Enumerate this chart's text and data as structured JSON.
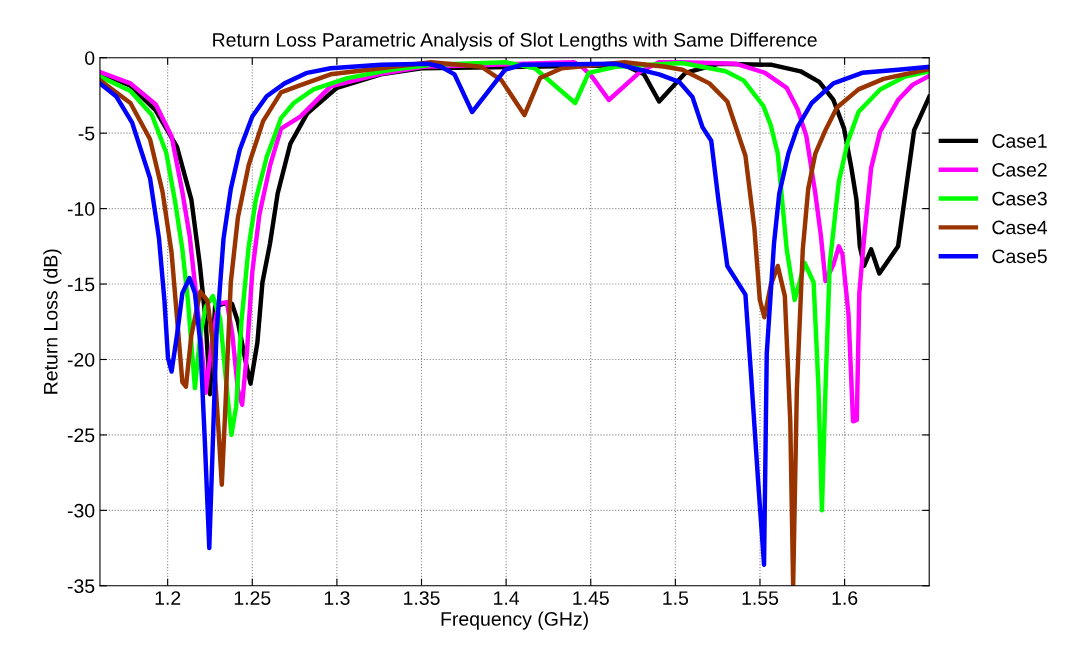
{
  "chart_data": {
    "type": "line",
    "title": "Return Loss Parametric Analysis of Slot Lengths with Same Difference",
    "xlabel": "Frequency (GHz)",
    "ylabel": "Return Loss (dB)",
    "xlim": [
      1.16,
      1.65
    ],
    "ylim": [
      -35,
      0
    ],
    "xticks": [
      1.2,
      1.25,
      1.3,
      1.35,
      1.4,
      1.45,
      1.5,
      1.55,
      1.6
    ],
    "yticks": [
      -35,
      -30,
      -25,
      -20,
      -15,
      -10,
      -5,
      0
    ],
    "grid": true,
    "legend": "right",
    "marker": "none",
    "line_style": "solid",
    "series": [
      {
        "name": "Case1",
        "color": "#000000",
        "x": [
          1.16,
          1.178,
          1.193,
          1.2055,
          1.214,
          1.219,
          1.2225,
          1.225,
          1.228,
          1.233,
          1.238,
          1.2415,
          1.246,
          1.249,
          1.253,
          1.256,
          1.2605,
          1.265,
          1.2725,
          1.2824,
          1.3,
          1.326,
          1.35,
          1.47,
          1.4815,
          1.4904,
          1.506,
          1.5254,
          1.557,
          1.574,
          1.585,
          1.5934,
          1.5997,
          1.604,
          1.607,
          1.609,
          1.6115,
          1.6157,
          1.6205,
          1.6316,
          1.6411,
          1.65
        ],
        "values": [
          -1.0,
          -1.85,
          -3.5,
          -5.9,
          -9.4,
          -13.7,
          -17.5,
          -22.3,
          -16.5,
          -16.3,
          -16.3,
          -17.5,
          -20.1,
          -21.6,
          -18.9,
          -14.9,
          -12.3,
          -9,
          -5.7,
          -3.7,
          -2.0,
          -1.1,
          -0.7,
          -0.5,
          -1.1,
          -2.9,
          -1.0,
          -0.4,
          -0.47,
          -0.9,
          -1.6,
          -2.8,
          -4.7,
          -7.3,
          -9.4,
          -12.5,
          -13.8,
          -12.7,
          -14.3,
          -12.5,
          -4.8,
          -2.6
        ]
      },
      {
        "name": "Case2",
        "color": "#ff00ff",
        "x": [
          1.16,
          1.178,
          1.193,
          1.2023,
          1.2087,
          1.213,
          1.216,
          1.2193,
          1.2225,
          1.2267,
          1.23,
          1.235,
          1.2383,
          1.2415,
          1.244,
          1.2468,
          1.25,
          1.2542,
          1.2606,
          1.267,
          1.2784,
          1.2963,
          1.326,
          1.351,
          1.44,
          1.4448,
          1.4507,
          1.4607,
          1.4795,
          1.4904,
          1.504,
          1.5361,
          1.553,
          1.5658,
          1.5722,
          1.5774,
          1.5827,
          1.586,
          1.5887,
          1.5934,
          1.5966,
          1.5987,
          1.6023,
          1.605,
          1.6072,
          1.6087,
          1.6115,
          1.6157,
          1.621,
          1.6316,
          1.6401,
          1.65
        ],
        "values": [
          -0.95,
          -1.7,
          -3.1,
          -5.2,
          -8.9,
          -11.8,
          -14.9,
          -18.4,
          -22.2,
          -18.4,
          -16.3,
          -16.2,
          -18.4,
          -22,
          -23,
          -19.6,
          -14.2,
          -10.4,
          -7.1,
          -4.7,
          -3.9,
          -1.9,
          -1.07,
          -0.6,
          -0.3,
          -0.6,
          -1.25,
          -2.8,
          -0.9,
          -0.3,
          -0.3,
          -0.4,
          -1.0,
          -2.0,
          -3.4,
          -5.2,
          -9.0,
          -11.8,
          -14.8,
          -13.7,
          -12.5,
          -13.0,
          -17.0,
          -24.1,
          -24.0,
          -15.6,
          -12.0,
          -7.3,
          -4.9,
          -2.8,
          -1.8,
          -1.2
        ]
      },
      {
        "name": "Case3",
        "color": "#00ff00",
        "x": [
          1.16,
          1.178,
          1.1907,
          1.1992,
          1.2045,
          1.2087,
          1.2119,
          1.2161,
          1.2193,
          1.2225,
          1.2267,
          1.231,
          1.2352,
          1.2377,
          1.2405,
          1.2436,
          1.2479,
          1.2521,
          1.2585,
          1.267,
          1.2745,
          1.2862,
          1.3062,
          1.3319,
          1.3557,
          1.4,
          1.417,
          1.4408,
          1.4488,
          1.4646,
          1.504,
          1.5297,
          1.5403,
          1.552,
          1.5563,
          1.5605,
          1.5658,
          1.5705,
          1.5733,
          1.5764,
          1.5817,
          1.5845,
          1.5866,
          1.5887,
          1.5912,
          1.5966,
          1.6018,
          1.6082,
          1.621,
          1.6358,
          1.65
        ],
        "values": [
          -1.25,
          -2.2,
          -3.8,
          -6.3,
          -9.6,
          -12.7,
          -16.0,
          -21.9,
          -18.4,
          -16.5,
          -15.8,
          -17.3,
          -22.2,
          -25.0,
          -23.1,
          -17.5,
          -12.5,
          -9.4,
          -6.6,
          -4.0,
          -3.0,
          -2.1,
          -1.35,
          -0.8,
          -0.47,
          -0.3,
          -0.7,
          -3.0,
          -1.0,
          -0.6,
          -0.35,
          -0.9,
          -1.5,
          -3.2,
          -4.45,
          -6.35,
          -12.7,
          -16.05,
          -14.9,
          -13.6,
          -14.9,
          -21.7,
          -30.0,
          -22.0,
          -13.7,
          -8.2,
          -5.6,
          -3.6,
          -2.1,
          -1.25,
          -0.9
        ]
      },
      {
        "name": "Case4",
        "color": "#993300",
        "x": [
          1.16,
          1.178,
          1.1896,
          1.197,
          1.2023,
          1.2055,
          1.2087,
          1.2108,
          1.214,
          1.2193,
          1.2235,
          1.2267,
          1.2299,
          1.232,
          1.2341,
          1.2373,
          1.2415,
          1.2479,
          1.2564,
          1.267,
          1.2765,
          1.2963,
          1.326,
          1.3557,
          1.3854,
          1.3973,
          1.4108,
          1.42,
          1.4329,
          1.47,
          1.494,
          1.5042,
          1.5201,
          1.5307,
          1.5414,
          1.5467,
          1.5499,
          1.5526,
          1.5563,
          1.5605,
          1.5647,
          1.5679,
          1.5696,
          1.5718,
          1.5753,
          1.5785,
          1.5827,
          1.5891,
          1.5955,
          1.6082,
          1.623,
          1.65
        ],
        "values": [
          -1.5,
          -3.0,
          -5.4,
          -8.9,
          -12.9,
          -17.2,
          -21.5,
          -21.8,
          -18.4,
          -15.5,
          -16.1,
          -18.9,
          -24.4,
          -28.3,
          -23.2,
          -14.9,
          -10.6,
          -7.1,
          -4.2,
          -2.3,
          -1.9,
          -1.1,
          -0.7,
          -0.3,
          -0.6,
          -1.5,
          -3.8,
          -1.35,
          -0.7,
          -0.3,
          -0.6,
          -0.8,
          -1.7,
          -2.9,
          -6.5,
          -11.3,
          -16.05,
          -17.2,
          -15.1,
          -13.8,
          -15.8,
          -24.1,
          -35,
          -22.0,
          -12.7,
          -8.7,
          -6.35,
          -4.7,
          -3.3,
          -2.1,
          -1.4,
          -0.75
        ]
      },
      {
        "name": "Case5",
        "color": "#0000ff",
        "x": [
          1.16,
          1.1695,
          1.179,
          1.1896,
          1.1949,
          1.1981,
          1.2002,
          1.2023,
          1.2055,
          1.2087,
          1.2129,
          1.2161,
          1.2193,
          1.222,
          1.2246,
          1.2267,
          1.2288,
          1.233,
          1.2373,
          1.2426,
          1.25,
          1.2585,
          1.2691,
          1.2824,
          1.2963,
          1.326,
          1.3537,
          1.3616,
          1.3695,
          1.3799,
          1.3993,
          1.4092,
          1.4646,
          1.4904,
          1.5023,
          1.5101,
          1.516,
          1.5212,
          1.5254,
          1.5307,
          1.5414,
          1.5446,
          1.5488,
          1.5524,
          1.554,
          1.5583,
          1.5614,
          1.5668,
          1.5722,
          1.5806,
          1.5934,
          1.6104,
          1.6316,
          1.65
        ],
        "values": [
          -1.7,
          -2.55,
          -4.3,
          -8.0,
          -12.0,
          -16.1,
          -19.9,
          -20.8,
          -18.4,
          -15.6,
          -14.6,
          -15.6,
          -18.9,
          -25.5,
          -32.5,
          -25.5,
          -18.4,
          -12.0,
          -8.7,
          -6.1,
          -3.9,
          -2.55,
          -1.7,
          -1.0,
          -0.7,
          -0.47,
          -0.4,
          -0.6,
          -1.1,
          -3.6,
          -0.8,
          -0.47,
          -0.4,
          -1.1,
          -1.6,
          -2.6,
          -4.6,
          -5.5,
          -9.4,
          -13.8,
          -15.7,
          -20.8,
          -27.9,
          -33.6,
          -19.6,
          -12.3,
          -9.0,
          -6.35,
          -4.6,
          -3.0,
          -1.7,
          -1.0,
          -0.8,
          -0.6
        ]
      }
    ]
  }
}
